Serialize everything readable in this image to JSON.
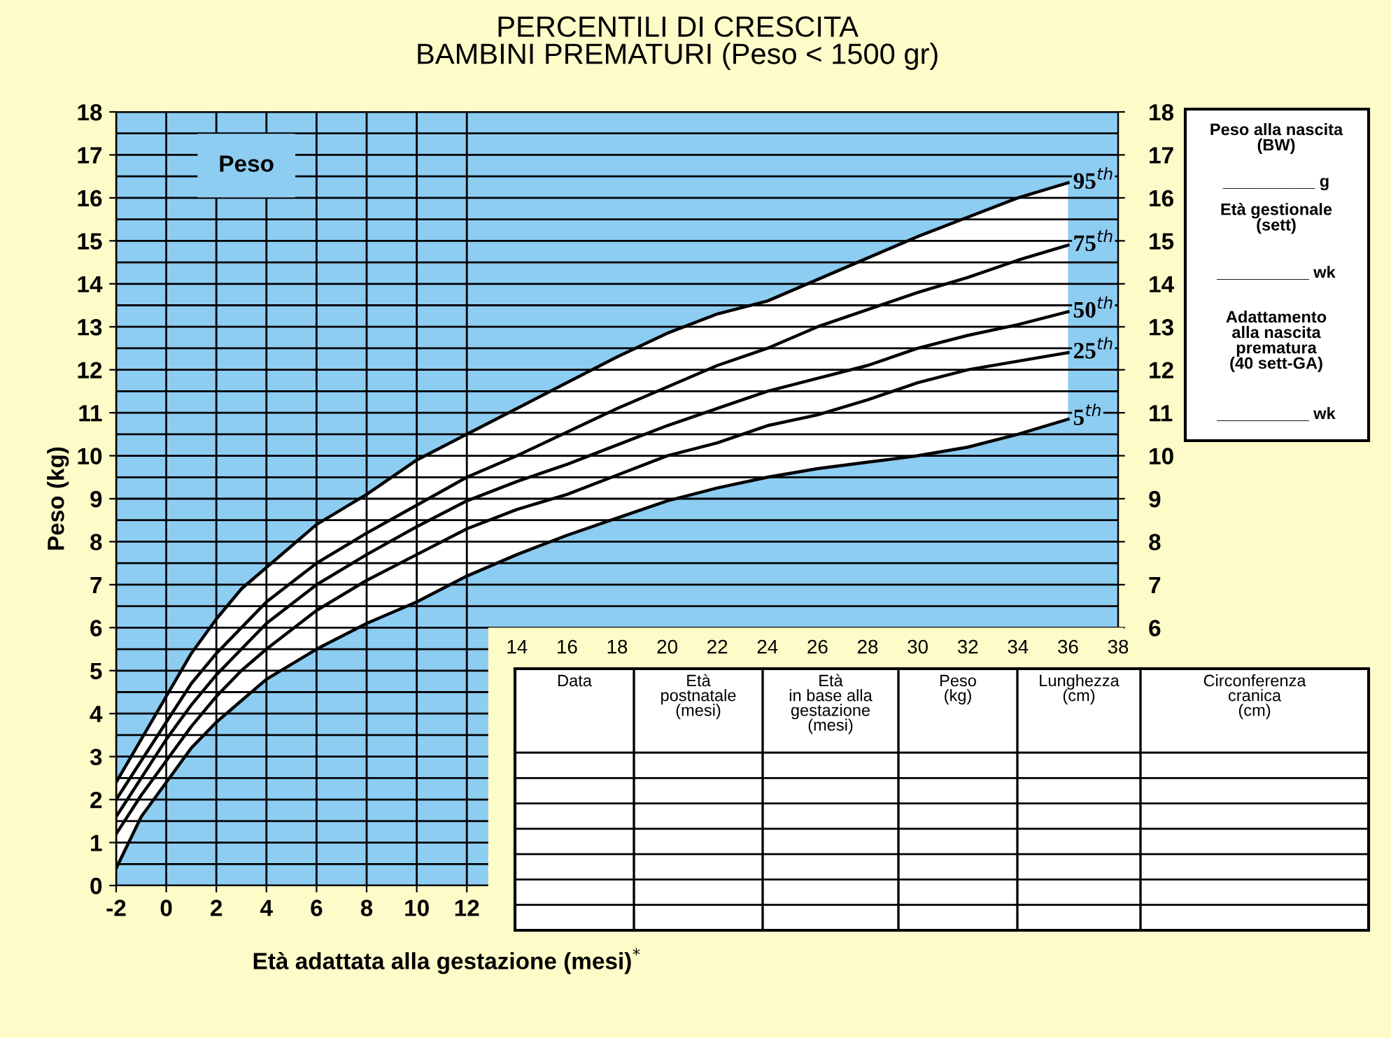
{
  "chart_data": {
    "type": "line",
    "title": "PERCENTILI DI CRESCITA\nBAMBINI PREMATURI (Peso < 1500 gr)",
    "xlabel": "Età adattata alla gestazione (mesi)$^{*}$",
    "ylabel": "Peso (kg)",
    "x": [
      -2,
      -1,
      0,
      1,
      2,
      3,
      4,
      6,
      8,
      10,
      12,
      14,
      16,
      18,
      20,
      22,
      24,
      26,
      28,
      30,
      32,
      34,
      36
    ],
    "series": [
      {
        "name": "95$^{th}$",
        "color": "#000000",
        "values": [
          2.4,
          3.4,
          4.4,
          5.4,
          6.2,
          6.9,
          7.4,
          8.4,
          9.1,
          9.9,
          10.5,
          11.1,
          11.7,
          12.3,
          12.85,
          13.3,
          13.6,
          14.1,
          14.6,
          15.1,
          15.55,
          16.0,
          16.35
        ]
      },
      {
        "name": "75$^{th}$",
        "color": "#000000",
        "values": [
          2.0,
          2.9,
          3.8,
          4.7,
          5.4,
          6.0,
          6.6,
          7.5,
          8.2,
          8.85,
          9.5,
          10.0,
          10.55,
          11.1,
          11.6,
          12.1,
          12.5,
          13.0,
          13.4,
          13.8,
          14.15,
          14.55,
          14.9
        ]
      },
      {
        "name": "50$^{th}$",
        "color": "#000000",
        "values": [
          1.6,
          2.5,
          3.4,
          4.2,
          4.9,
          5.5,
          6.1,
          7.0,
          7.7,
          8.35,
          8.95,
          9.4,
          9.8,
          10.25,
          10.7,
          11.1,
          11.5,
          11.8,
          12.1,
          12.5,
          12.8,
          13.05,
          13.35
        ],
        "lower": [
          0.4,
          1.6,
          2.4,
          3.2,
          3.8,
          4.3,
          4.8,
          5.5,
          6.1,
          6.6,
          7.2,
          7.7,
          8.15,
          8.55,
          8.95,
          9.25,
          9.5,
          9.7,
          9.85,
          10.0,
          10.2,
          10.5,
          10.85
        ],
        "upper": [
          2.4,
          3.4,
          4.4,
          5.4,
          6.2,
          6.9,
          7.4,
          8.4,
          9.1,
          9.9,
          10.5,
          11.1,
          11.7,
          12.3,
          12.85,
          13.3,
          13.6,
          14.1,
          14.6,
          15.1,
          15.55,
          16.0,
          16.35
        ]
      },
      {
        "name": "25$^{th}$",
        "color": "#000000",
        "values": [
          1.2,
          2.1,
          2.9,
          3.7,
          4.4,
          5.0,
          5.5,
          6.4,
          7.1,
          7.7,
          8.3,
          8.75,
          9.1,
          9.55,
          10.0,
          10.3,
          10.7,
          10.95,
          11.3,
          11.7,
          12.0,
          12.2,
          12.4
        ]
      },
      {
        "name": "5$^{th}$",
        "color": "#000000",
        "values": [
          0.4,
          1.6,
          2.4,
          3.2,
          3.8,
          4.3,
          4.8,
          5.5,
          6.1,
          6.6,
          7.2,
          7.7,
          8.15,
          8.55,
          8.95,
          9.25,
          9.5,
          9.7,
          9.85,
          10.0,
          10.2,
          10.5,
          10.85
        ]
      }
    ],
    "xlim": [
      -2,
      38
    ],
    "xticks": [
      -2,
      0,
      2,
      4,
      6,
      8,
      10,
      12
    ],
    "x2lim": [
      -2,
      38
    ],
    "x2ticks": [
      14,
      16,
      18,
      20,
      22,
      24,
      26,
      28,
      30,
      32,
      34,
      36,
      38
    ],
    "ylim": [
      0,
      18
    ],
    "yticks": [
      0,
      1,
      2,
      3,
      4,
      5,
      6,
      7,
      8,
      9,
      10,
      11,
      12,
      13,
      14,
      15,
      16,
      17,
      18
    ],
    "y2lim": [
      0,
      18
    ],
    "y2ticks": [
      6,
      7,
      8,
      9,
      10,
      11,
      12,
      13,
      14,
      15,
      16,
      17,
      18
    ],
    "grid": true,
    "legend": false,
    "marker": "none",
    "line_style": "solid",
    "annotations": [
      "Peso",
      "Data",
      "Età\npostnatale\n(mesi)",
      "Età\nin base alla\ngestazione\n(mesi)",
      "Peso\n(kg)",
      "Lunghezza\n(cm)",
      "Circonferenza\ncranica\n(cm)",
      "Peso alla nascita\n(BW)",
      "__________ g",
      "Età gestionale\n(sett)",
      "__________ wk",
      "Adattamento\nalla nascita\nprematura\n(40 sett-GA)",
      "__________ wk"
    ]
  }
}
